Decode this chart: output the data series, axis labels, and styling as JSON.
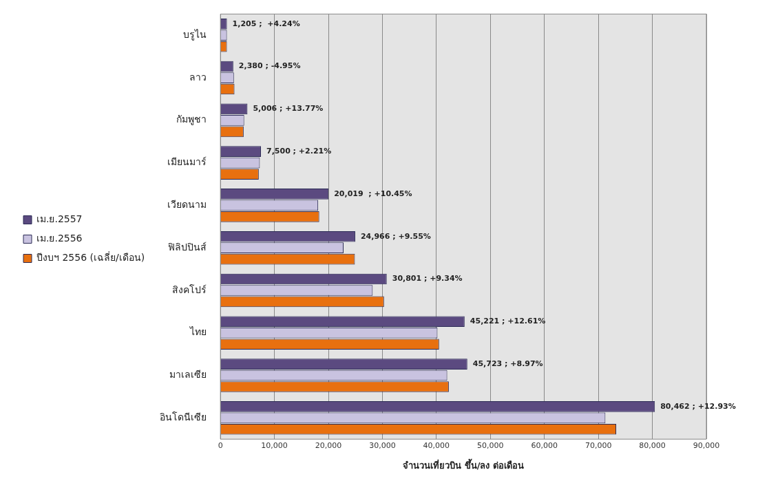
{
  "chart_data": {
    "type": "bar",
    "orientation": "horizontal",
    "categories": [
      "บรูไน",
      "ลาว",
      "กัมพูชา",
      "เมียนมาร์",
      "เวียดนาม",
      "ฟิลิปปินส์",
      "สิงคโปร์",
      "ไทย",
      "มาเลเซีย",
      "อินโดนีเซีย"
    ],
    "series": [
      {
        "name": "เม.ย.2557",
        "color": "#5b4a80",
        "values": [
          1205,
          2380,
          5006,
          7500,
          20019,
          24966,
          30801,
          45221,
          45723,
          80462
        ],
        "value_labels": [
          "1,205 ;  +4.24%",
          "2,380 ; -4.95%",
          "5,006 ; +13.77%",
          "7,500 ; +2.21%",
          "20,019  ; +10.45%",
          "24,966 ; +9.55%",
          "30,801 ; +9.34%",
          "45,221 ; +12.61%",
          "45,723 ; +8.97%",
          "80,462 ; +12.93%"
        ]
      },
      {
        "name": "เม.ย.2556",
        "color": "#c9c3e0",
        "values": [
          1200,
          2500,
          4400,
          7300,
          18100,
          22800,
          28200,
          40200,
          42000,
          71300
        ]
      },
      {
        "name": "ปีงบฯ 2556 (เฉลี่ย/เดือน)",
        "color": "#e8700f",
        "values": [
          1200,
          2600,
          4300,
          7100,
          18300,
          24900,
          30300,
          40500,
          42300,
          73300
        ]
      }
    ],
    "xlabel": "จำนวนเที่ยวบิน ขึ้น/ลง ต่อเดือน",
    "xlim": [
      0,
      90000
    ],
    "xticks": [
      0,
      {
        "value": 10000,
        "label": "10,000"
      },
      {
        "value": 20000,
        "label": "20,000"
      },
      {
        "value": 30000,
        "label": "30,000"
      },
      {
        "value": 40000,
        "label": "40,000"
      },
      {
        "value": 50000,
        "label": "50,000"
      },
      {
        "value": 60000,
        "label": "60,000"
      },
      {
        "value": 70000,
        "label": "70,000"
      },
      {
        "value": 80000,
        "label": "80,000"
      },
      {
        "value": 90000,
        "label": "90,000"
      }
    ],
    "grid": "x",
    "legend": "left"
  }
}
